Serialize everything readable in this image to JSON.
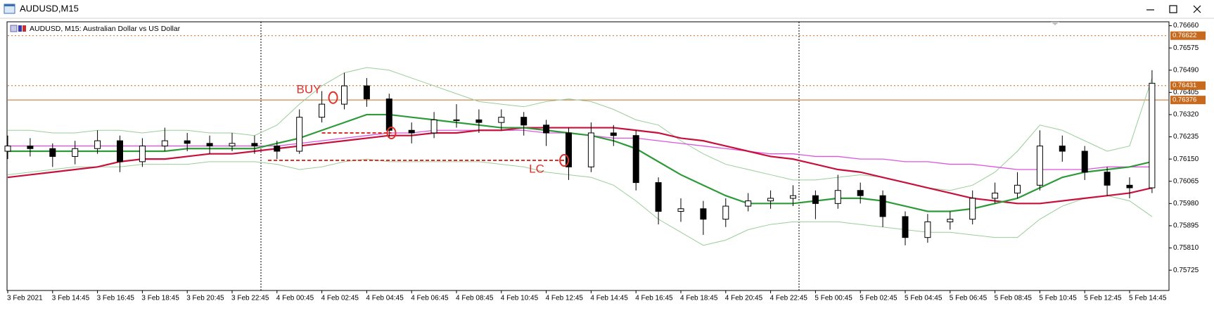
{
  "window_title": "AUDUSD,M15",
  "chart_data": {
    "type": "candlestick",
    "title": "AUDUSD, M15:  Australian Dollar vs US Dollar",
    "x_labels": [
      "3 Feb 2021",
      "3 Feb 14:45",
      "3 Feb 16:45",
      "3 Feb 18:45",
      "3 Feb 20:45",
      "3 Feb 22:45",
      "4 Feb 00:45",
      "4 Feb 02:45",
      "4 Feb 04:45",
      "4 Feb 06:45",
      "4 Feb 08:45",
      "4 Feb 10:45",
      "4 Feb 12:45",
      "4 Feb 14:45",
      "4 Feb 16:45",
      "4 Feb 18:45",
      "4 Feb 20:45",
      "4 Feb 22:45",
      "5 Feb 00:45",
      "5 Feb 02:45",
      "5 Feb 04:45",
      "5 Feb 06:45",
      "5 Feb 08:45",
      "5 Feb 10:45",
      "5 Feb 12:45",
      "5 Feb 14:45"
    ],
    "open": [
      0.7618,
      0.762,
      0.7619,
      0.7616,
      0.7619,
      0.7622,
      0.7614,
      0.762,
      0.7622,
      0.7621,
      0.762,
      0.7621,
      0.762,
      0.7618,
      0.7631,
      0.7636,
      0.7643,
      0.7638,
      0.7626,
      0.7625,
      0.763,
      0.763,
      0.7629,
      0.7631,
      0.7628,
      0.7625,
      0.7612,
      0.7625,
      0.7624,
      0.7606,
      0.7595,
      0.7596,
      0.7592,
      0.7597,
      0.7599,
      0.76,
      0.7601,
      0.7598,
      0.7603,
      0.7601,
      0.7593,
      0.7585,
      0.7591,
      0.7592,
      0.76,
      0.7602,
      0.7605,
      0.762,
      0.7618,
      0.761,
      0.7605,
      0.7604
    ],
    "high": [
      0.7624,
      0.7623,
      0.7621,
      0.7622,
      0.7626,
      0.7624,
      0.7623,
      0.7627,
      0.7625,
      0.7624,
      0.7625,
      0.7624,
      0.7622,
      0.7634,
      0.7641,
      0.7648,
      0.7646,
      0.764,
      0.7629,
      0.7633,
      0.7636,
      0.7634,
      0.7634,
      0.7633,
      0.763,
      0.7627,
      0.7629,
      0.7628,
      0.7626,
      0.7608,
      0.76,
      0.7599,
      0.76,
      0.7602,
      0.7603,
      0.7605,
      0.7603,
      0.7609,
      0.7606,
      0.7603,
      0.7595,
      0.7594,
      0.7595,
      0.7603,
      0.7606,
      0.761,
      0.7626,
      0.7624,
      0.762,
      0.7612,
      0.7608,
      0.7649
    ],
    "low": [
      0.7615,
      0.7616,
      0.7612,
      0.7613,
      0.7617,
      0.761,
      0.7612,
      0.7618,
      0.7618,
      0.7617,
      0.7618,
      0.7617,
      0.7615,
      0.7617,
      0.7629,
      0.7634,
      0.7635,
      0.7623,
      0.7621,
      0.7623,
      0.7627,
      0.7625,
      0.7626,
      0.7624,
      0.762,
      0.7607,
      0.761,
      0.762,
      0.7603,
      0.759,
      0.7591,
      0.7586,
      0.7589,
      0.7595,
      0.7596,
      0.7597,
      0.7592,
      0.7596,
      0.7598,
      0.7589,
      0.7582,
      0.7583,
      0.7588,
      0.759,
      0.7598,
      0.76,
      0.7603,
      0.7614,
      0.7607,
      0.7601,
      0.76,
      0.7602
    ],
    "close": [
      0.762,
      0.7619,
      0.7616,
      0.7619,
      0.7622,
      0.7614,
      0.762,
      0.7622,
      0.7621,
      0.762,
      0.7621,
      0.762,
      0.7618,
      0.7631,
      0.7636,
      0.7643,
      0.7638,
      0.7626,
      0.7625,
      0.763,
      0.763,
      0.7629,
      0.7631,
      0.7628,
      0.7625,
      0.7612,
      0.7625,
      0.7624,
      0.7606,
      0.7595,
      0.7596,
      0.7592,
      0.7597,
      0.7599,
      0.76,
      0.7601,
      0.7598,
      0.7603,
      0.7601,
      0.7593,
      0.7585,
      0.7591,
      0.7592,
      0.76,
      0.7602,
      0.7605,
      0.762,
      0.7618,
      0.761,
      0.7605,
      0.7604,
      0.7644
    ],
    "color_up": "#ffffff",
    "color_down": "#000000",
    "series": [
      {
        "color": "#9acd9a",
        "width": 1,
        "values": [
          0.7626,
          0.7626,
          0.7625,
          0.7625,
          0.7626,
          0.7626,
          0.7625,
          0.7626,
          0.7626,
          0.7625,
          0.7625,
          0.7624,
          0.7628,
          0.7636,
          0.7643,
          0.7648,
          0.765,
          0.7649,
          0.7646,
          0.7643,
          0.764,
          0.7637,
          0.7636,
          0.7635,
          0.7637,
          0.7638,
          0.7637,
          0.7634,
          0.763,
          0.7628,
          0.7622,
          0.7617,
          0.7613,
          0.7611,
          0.7609,
          0.7607,
          0.7607,
          0.7608,
          0.7609,
          0.7608,
          0.7606,
          0.7604,
          0.7603,
          0.7605,
          0.761,
          0.7618,
          0.7628,
          0.7626,
          0.7622,
          0.7618,
          0.762,
          0.7646
        ]
      },
      {
        "color": "#9acd9a",
        "width": 1,
        "values": [
          0.7609,
          0.761,
          0.7611,
          0.7612,
          0.7612,
          0.7612,
          0.7613,
          0.7613,
          0.7613,
          0.7614,
          0.7614,
          0.7614,
          0.7613,
          0.7611,
          0.7612,
          0.7614,
          0.7615,
          0.7614,
          0.7614,
          0.7614,
          0.7614,
          0.7614,
          0.7613,
          0.7612,
          0.761,
          0.7609,
          0.7608,
          0.7605,
          0.7599,
          0.7592,
          0.7587,
          0.7582,
          0.7584,
          0.7588,
          0.759,
          0.7591,
          0.7591,
          0.7591,
          0.759,
          0.7589,
          0.7588,
          0.7587,
          0.7587,
          0.7586,
          0.7585,
          0.7585,
          0.7592,
          0.7597,
          0.76,
          0.7601,
          0.7599,
          0.7593
        ]
      },
      {
        "color": "#dd55dd",
        "width": 1.3,
        "values": [
          0.762,
          0.762,
          0.762,
          0.762,
          0.762,
          0.762,
          0.762,
          0.762,
          0.762,
          0.762,
          0.762,
          0.762,
          0.762,
          0.7621,
          0.7622,
          0.7623,
          0.7624,
          0.7625,
          0.7625,
          0.7626,
          0.7626,
          0.7626,
          0.7626,
          0.7626,
          0.7625,
          0.7625,
          0.7624,
          0.7623,
          0.7623,
          0.7622,
          0.7621,
          0.762,
          0.7619,
          0.7618,
          0.7617,
          0.7617,
          0.7616,
          0.7616,
          0.7615,
          0.7615,
          0.7614,
          0.7614,
          0.7613,
          0.7613,
          0.7612,
          0.7611,
          0.7611,
          0.7611,
          0.7611,
          0.7612,
          0.7612,
          0.7612
        ]
      },
      {
        "color": "#c8103c",
        "width": 2.2,
        "values": [
          0.7608,
          0.7609,
          0.761,
          0.7611,
          0.7612,
          0.7614,
          0.7615,
          0.7615,
          0.7616,
          0.7617,
          0.7617,
          0.7618,
          0.7619,
          0.762,
          0.7621,
          0.7622,
          0.7623,
          0.7624,
          0.7624,
          0.7625,
          0.7625,
          0.7626,
          0.7626,
          0.7627,
          0.7627,
          0.7627,
          0.7627,
          0.7627,
          0.7626,
          0.7625,
          0.7623,
          0.7622,
          0.762,
          0.7618,
          0.7616,
          0.7615,
          0.7613,
          0.7611,
          0.761,
          0.7608,
          0.7606,
          0.7604,
          0.7602,
          0.76,
          0.7599,
          0.7598,
          0.7598,
          0.7599,
          0.76,
          0.7601,
          0.7602,
          0.7604
        ]
      },
      {
        "color": "#2e9a3a",
        "width": 2.2,
        "values": [
          0.7618,
          0.7618,
          0.7618,
          0.7618,
          0.7618,
          0.7618,
          0.7618,
          0.7618,
          0.7619,
          0.7619,
          0.7619,
          0.7619,
          0.7621,
          0.7623,
          0.7626,
          0.7629,
          0.7632,
          0.7632,
          0.7631,
          0.763,
          0.7629,
          0.7628,
          0.7627,
          0.7627,
          0.7626,
          0.7625,
          0.7624,
          0.7622,
          0.7619,
          0.7614,
          0.7609,
          0.7605,
          0.7601,
          0.7598,
          0.7598,
          0.7598,
          0.7599,
          0.76,
          0.76,
          0.7599,
          0.7597,
          0.7595,
          0.7595,
          0.7596,
          0.7598,
          0.76,
          0.7604,
          0.7608,
          0.761,
          0.7611,
          0.7612,
          0.7614
        ]
      }
    ],
    "ylim": [
      0.7565,
      0.76675
    ],
    "yticks": [
      {
        "value": 0.7666,
        "label": "0.76660"
      },
      0.76575,
      {
        "value": 0.7649,
        "label": "0.76490"
      },
      0.76405,
      {
        "value": 0.7632,
        "label": "0.76320"
      },
      0.76235,
      {
        "value": 0.7615,
        "label": "0.76150"
      },
      0.76065,
      {
        "value": 0.7598,
        "label": "0.75980"
      },
      0.75895,
      {
        "value": 0.7581,
        "label": "0.75810"
      },
      0.75725
    ],
    "levels": [
      {
        "value": 0.76622,
        "color": "#c86a1e",
        "style": "dotted"
      },
      {
        "value": 0.76431,
        "color": "#c86a1e",
        "style": "dotted"
      },
      {
        "value": 0.76376,
        "color": "#c86a1e",
        "style": "solid"
      }
    ],
    "trade_lines": [
      {
        "value": 0.7625,
        "from": 14,
        "to": 17.1
      },
      {
        "value": 0.76145,
        "from": 11.6,
        "to": 24.8
      }
    ],
    "markers": [
      {
        "x": 14.5,
        "y": 0.76385
      },
      {
        "x": 17.1,
        "y": 0.7625
      },
      {
        "x": 24.8,
        "y": 0.76145
      }
    ],
    "annotations": [
      "BUY",
      "LC"
    ],
    "grid": false
  }
}
